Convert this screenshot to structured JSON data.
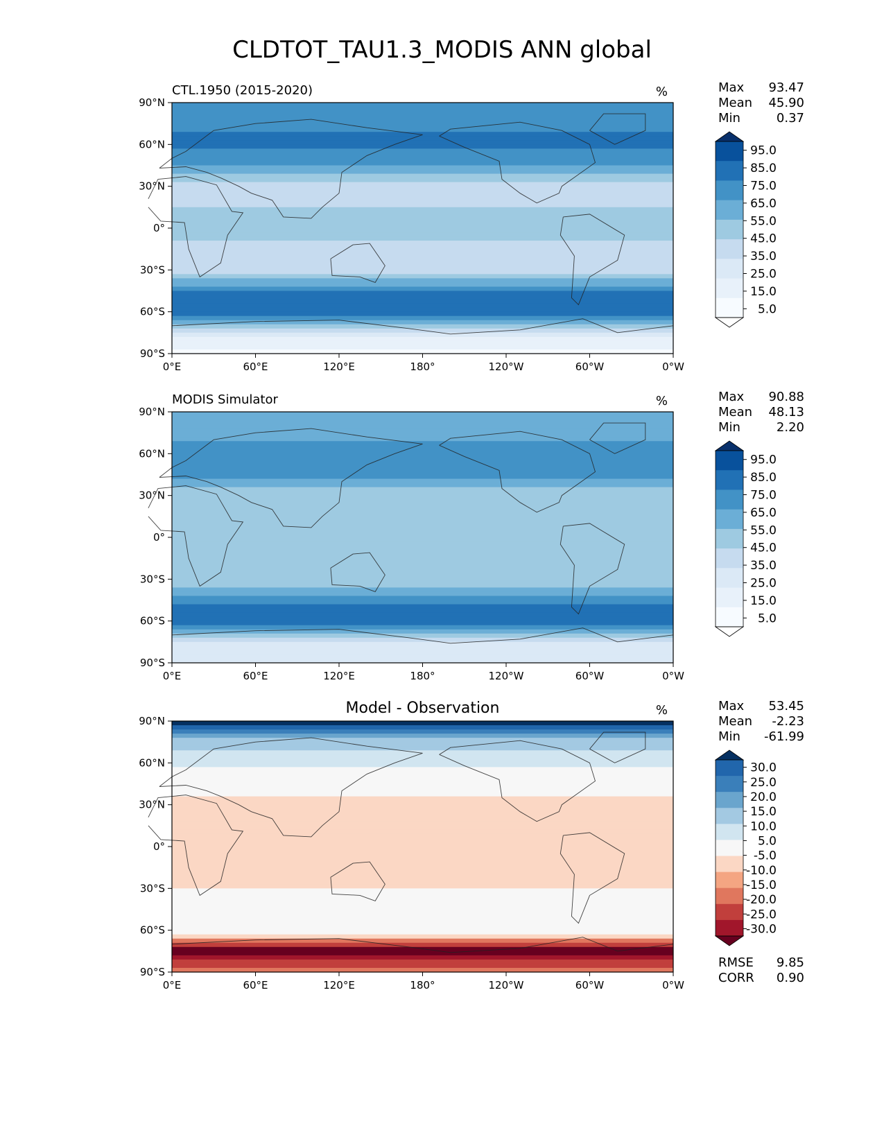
{
  "title": "CLDTOT_TAU1.3_MODIS ANN global",
  "lon_ticks": [
    "0°E",
    "60°E",
    "120°E",
    "180°",
    "120°W",
    "60°W",
    "0°W"
  ],
  "lat_ticks": [
    "90°N",
    "60°N",
    "30°N",
    "0°",
    "30°S",
    "60°S",
    "90°S"
  ],
  "chart_data": [
    {
      "type": "heatmap",
      "title": "CTL.1950 (2015-2020)",
      "units": "%",
      "stats": {
        "max_label": "Max",
        "mean_label": "Mean",
        "min_label": "Min",
        "max": "93.47",
        "mean": "45.90",
        "min": "0.37"
      },
      "colorbar": {
        "labels": [
          "95.0",
          "85.0",
          "75.0",
          "65.0",
          "55.0",
          "45.0",
          "35.0",
          "25.0",
          "15.0",
          "5.0"
        ],
        "colors": [
          "#08306b",
          "#08519c",
          "#2171b5",
          "#4292c6",
          "#6baed6",
          "#9ecae1",
          "#c6dbef",
          "#dbe9f6",
          "#e8f1fa",
          "#f7fbff",
          "#ffffff"
        ]
      },
      "profile_lat": [
        90,
        75,
        60,
        45,
        30,
        15,
        0,
        -15,
        -30,
        -45,
        -60,
        -75,
        -90
      ],
      "profile_value": [
        70,
        72,
        78,
        65,
        40,
        45,
        50,
        42,
        40,
        75,
        85,
        30,
        12
      ]
    },
    {
      "type": "heatmap",
      "title": "MODIS Simulator",
      "units": "%",
      "stats": {
        "max_label": "Max",
        "mean_label": "Mean",
        "min_label": "Min",
        "max": "90.88",
        "mean": "48.13",
        "min": "2.20"
      },
      "colorbar": {
        "labels": [
          "95.0",
          "85.0",
          "75.0",
          "65.0",
          "55.0",
          "45.0",
          "35.0",
          "25.0",
          "15.0",
          "5.0"
        ],
        "colors": [
          "#08306b",
          "#08519c",
          "#2171b5",
          "#4292c6",
          "#6baed6",
          "#9ecae1",
          "#c6dbef",
          "#dbe9f6",
          "#e8f1fa",
          "#f7fbff",
          "#ffffff"
        ]
      },
      "profile_lat": [
        90,
        75,
        60,
        45,
        30,
        15,
        0,
        -15,
        -30,
        -45,
        -60,
        -75,
        -90
      ],
      "profile_value": [
        60,
        58,
        72,
        68,
        48,
        52,
        55,
        48,
        45,
        72,
        82,
        35,
        28
      ]
    },
    {
      "type": "heatmap",
      "title": "Model - Observation",
      "units": "%",
      "stats": {
        "max_label": "Max",
        "mean_label": "Mean",
        "min_label": "Min",
        "max": "53.45",
        "mean": "-2.23",
        "min": "-61.99"
      },
      "extra_stats": {
        "rmse_label": "RMSE",
        "corr_label": "CORR",
        "rmse": "9.85",
        "corr": "0.90"
      },
      "colorbar": {
        "labels": [
          "30.0",
          "25.0",
          "20.0",
          "15.0",
          "10.0",
          "5.0",
          "-5.0",
          "-10.0",
          "-15.0",
          "-20.0",
          "-25.0",
          "-30.0"
        ],
        "colors": [
          "#053061",
          "#2166ac",
          "#3a7fba",
          "#6aa5cd",
          "#a3c9e2",
          "#d1e5f0",
          "#f7f7f7",
          "#fbd7c4",
          "#f4a582",
          "#e0775e",
          "#c13f3c",
          "#a1162b",
          "#67001f"
        ]
      },
      "profile_lat": [
        90,
        75,
        60,
        45,
        30,
        15,
        0,
        -15,
        -30,
        -45,
        -60,
        -75,
        -90
      ],
      "profile_value": [
        35,
        12,
        6,
        -2,
        -8,
        -6,
        -5,
        -6,
        -5,
        0,
        2,
        -35,
        -15
      ]
    }
  ]
}
